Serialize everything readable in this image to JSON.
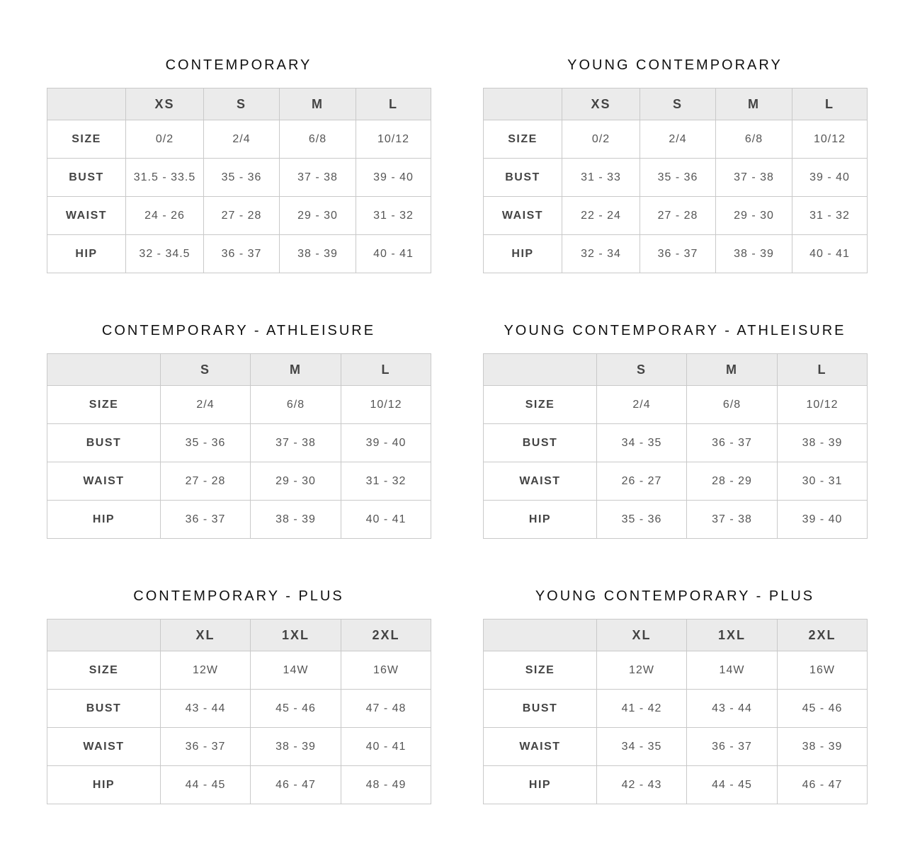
{
  "charts": [
    {
      "title": "CONTEMPORARY",
      "columns": [
        "XS",
        "S",
        "M",
        "L"
      ],
      "rows": [
        {
          "label": "SIZE",
          "values": [
            "0/2",
            "2/4",
            "6/8",
            "10/12"
          ]
        },
        {
          "label": "BUST",
          "values": [
            "31.5 - 33.5",
            "35 - 36",
            "37 - 38",
            "39 - 40"
          ]
        },
        {
          "label": "WAIST",
          "values": [
            "24 - 26",
            "27 - 28",
            "29 - 30",
            "31 - 32"
          ]
        },
        {
          "label": "HIP",
          "values": [
            "32 - 34.5",
            "36 - 37",
            "38 - 39",
            "40 - 41"
          ]
        }
      ]
    },
    {
      "title": "YOUNG CONTEMPORARY",
      "columns": [
        "XS",
        "S",
        "M",
        "L"
      ],
      "rows": [
        {
          "label": "SIZE",
          "values": [
            "0/2",
            "2/4",
            "6/8",
            "10/12"
          ]
        },
        {
          "label": "BUST",
          "values": [
            "31 - 33",
            "35 - 36",
            "37 - 38",
            "39 - 40"
          ]
        },
        {
          "label": "WAIST",
          "values": [
            "22 - 24",
            "27 - 28",
            "29 - 30",
            "31 - 32"
          ]
        },
        {
          "label": "HIP",
          "values": [
            "32 - 34",
            "36 - 37",
            "38 - 39",
            "40 - 41"
          ]
        }
      ]
    },
    {
      "title": "CONTEMPORARY - ATHLEISURE",
      "columns": [
        "S",
        "M",
        "L"
      ],
      "rows": [
        {
          "label": "SIZE",
          "values": [
            "2/4",
            "6/8",
            "10/12"
          ]
        },
        {
          "label": "BUST",
          "values": [
            "35 - 36",
            "37 - 38",
            "39 - 40"
          ]
        },
        {
          "label": "WAIST",
          "values": [
            "27 - 28",
            "29 - 30",
            "31 - 32"
          ]
        },
        {
          "label": "HIP",
          "values": [
            "36 - 37",
            "38 - 39",
            "40 - 41"
          ]
        }
      ]
    },
    {
      "title": "YOUNG CONTEMPORARY - ATHLEISURE",
      "columns": [
        "S",
        "M",
        "L"
      ],
      "rows": [
        {
          "label": "SIZE",
          "values": [
            "2/4",
            "6/8",
            "10/12"
          ]
        },
        {
          "label": "BUST",
          "values": [
            "34 - 35",
            "36 - 37",
            "38 - 39"
          ]
        },
        {
          "label": "WAIST",
          "values": [
            "26 - 27",
            "28 - 29",
            "30 - 31"
          ]
        },
        {
          "label": "HIP",
          "values": [
            "35 - 36",
            "37 - 38",
            "39 - 40"
          ]
        }
      ]
    },
    {
      "title": "CONTEMPORARY - PLUS",
      "columns": [
        "XL",
        "1XL",
        "2XL"
      ],
      "rows": [
        {
          "label": "SIZE",
          "values": [
            "12W",
            "14W",
            "16W"
          ]
        },
        {
          "label": "BUST",
          "values": [
            "43 - 44",
            "45 - 46",
            "47 - 48"
          ]
        },
        {
          "label": "WAIST",
          "values": [
            "36 - 37",
            "38 - 39",
            "40 - 41"
          ]
        },
        {
          "label": "HIP",
          "values": [
            "44 - 45",
            "46 - 47",
            "48 - 49"
          ]
        }
      ]
    },
    {
      "title": "YOUNG CONTEMPORARY - PLUS",
      "columns": [
        "XL",
        "1XL",
        "2XL"
      ],
      "rows": [
        {
          "label": "SIZE",
          "values": [
            "12W",
            "14W",
            "16W"
          ]
        },
        {
          "label": "BUST",
          "values": [
            "41 - 42",
            "43 - 44",
            "45 - 46"
          ]
        },
        {
          "label": "WAIST",
          "values": [
            "34 - 35",
            "36 - 37",
            "38 - 39"
          ]
        },
        {
          "label": "HIP",
          "values": [
            "42 - 43",
            "44 - 45",
            "46 - 47"
          ]
        }
      ]
    }
  ]
}
